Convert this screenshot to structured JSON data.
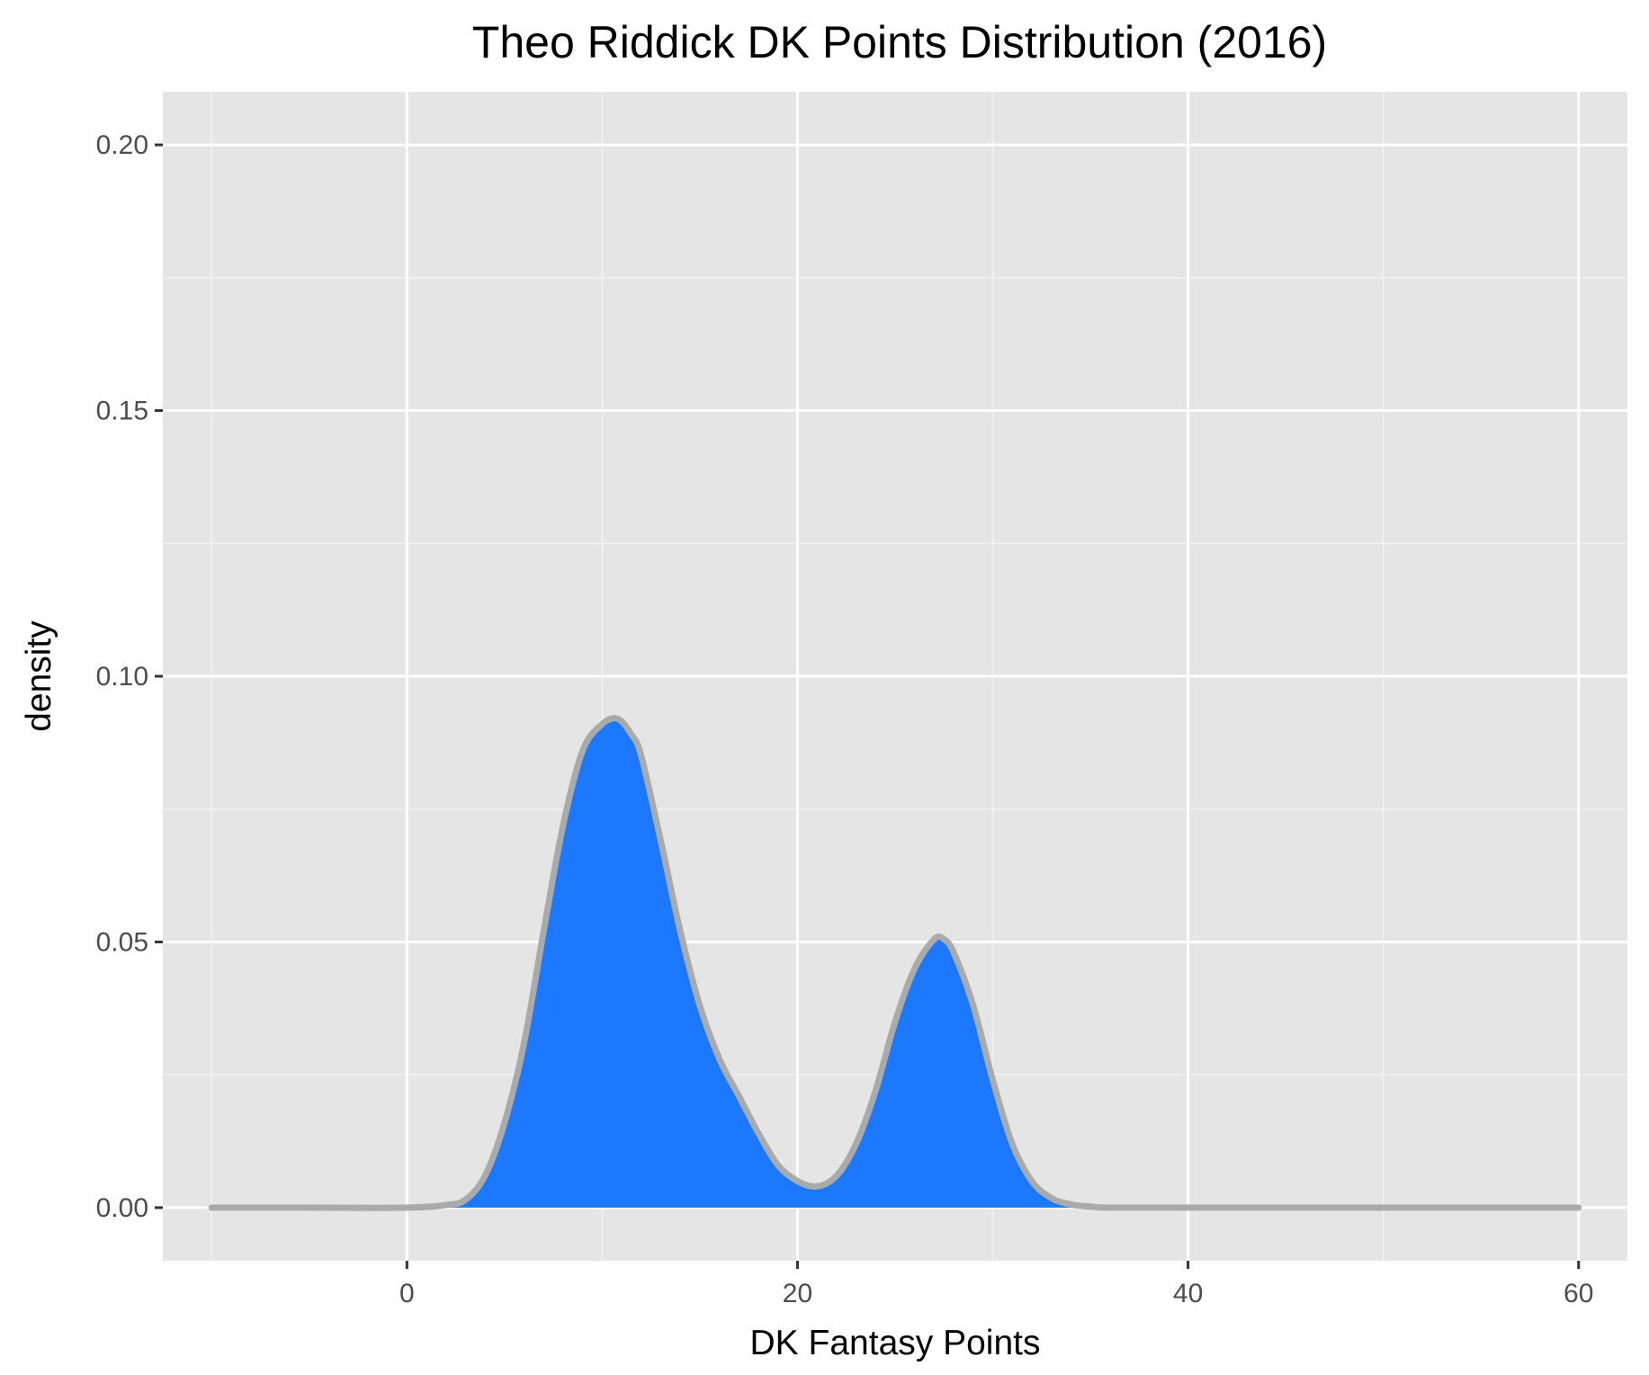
{
  "chart_data": {
    "type": "area",
    "title": "Theo Riddick DK Points Distribution (2016)",
    "xlabel": "DK Fantasy Points",
    "ylabel": "density",
    "xlim": [
      -12.5,
      62.5
    ],
    "ylim": [
      -0.01,
      0.21
    ],
    "x_ticks": [
      0,
      20,
      40,
      60
    ],
    "x_tick_labels": [
      "0",
      "20",
      "40",
      "60"
    ],
    "y_ticks": [
      0.0,
      0.05,
      0.1,
      0.15,
      0.2
    ],
    "y_tick_labels": [
      "0.00",
      "0.05",
      "0.10",
      "0.15",
      "0.20"
    ],
    "grid": true,
    "legend": "none",
    "fill_color": "#1c78fe",
    "line_color": "#aaaaaa",
    "panel_color": "#e5e5e5",
    "series": [
      {
        "x": [
          -10,
          -5,
          0,
          2,
          3,
          4,
          5,
          6,
          7,
          8,
          9,
          10,
          10.8,
          11.5,
          12,
          13,
          14,
          15,
          16,
          17,
          18,
          19,
          20,
          21,
          22,
          23,
          24,
          25,
          26,
          27,
          27.5,
          28,
          29,
          30,
          31,
          32,
          33,
          34,
          35,
          36,
          40,
          50,
          60
        ],
        "y": [
          0,
          0,
          0,
          0.0005,
          0.0015,
          0.006,
          0.016,
          0.031,
          0.052,
          0.072,
          0.086,
          0.091,
          0.092,
          0.089,
          0.085,
          0.069,
          0.052,
          0.038,
          0.028,
          0.021,
          0.014,
          0.008,
          0.005,
          0.004,
          0.006,
          0.012,
          0.022,
          0.035,
          0.045,
          0.0505,
          0.0505,
          0.048,
          0.038,
          0.024,
          0.012,
          0.005,
          0.0018,
          0.0006,
          0.0002,
          0,
          0,
          0,
          0
        ]
      }
    ]
  }
}
